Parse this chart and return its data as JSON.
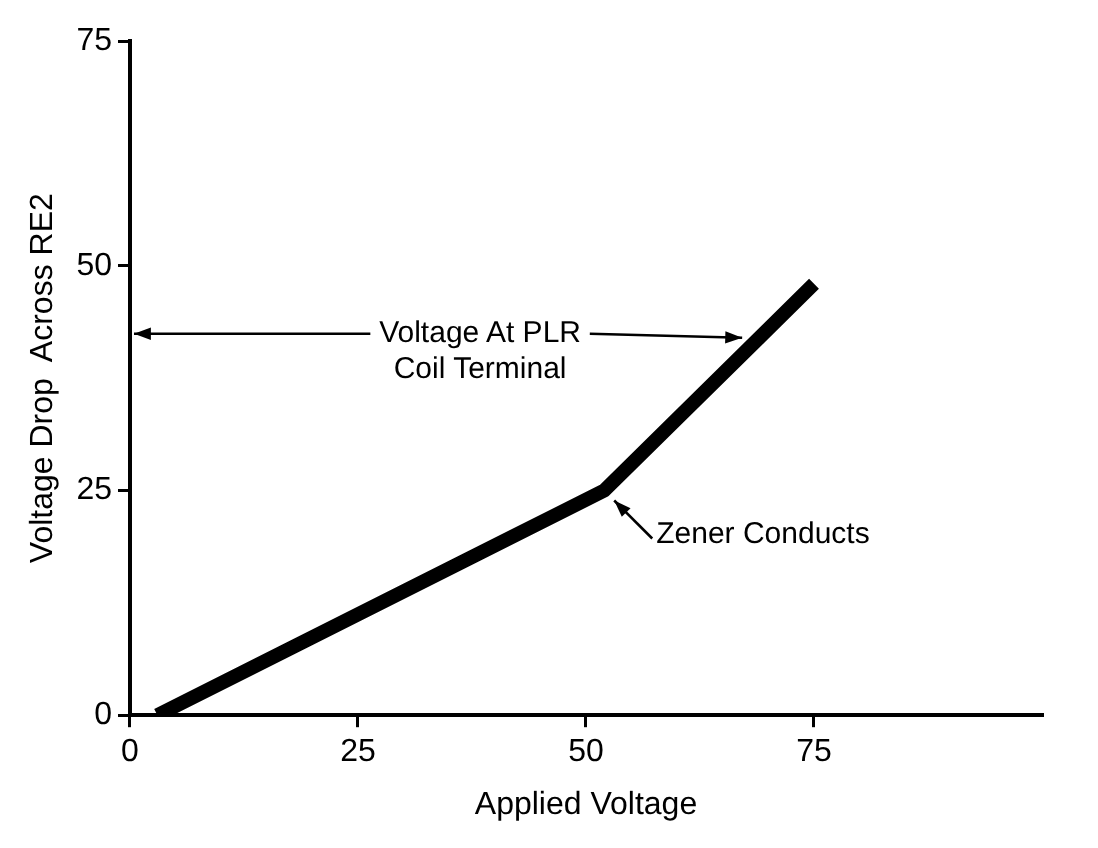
{
  "chart_data": {
    "type": "line",
    "xlabel": "Applied Voltage",
    "ylabel": "Voltage Drop  Across RE2",
    "series": [
      {
        "color": "#000000",
        "x": [
          3,
          52,
          75
        ],
        "values": [
          0,
          25,
          48
        ]
      }
    ],
    "xlim": [
      0,
      100
    ],
    "xticks": [
      0,
      25,
      50,
      75
    ],
    "ylim": [
      0,
      75
    ],
    "yticks": [
      0,
      25,
      50,
      75
    ],
    "grid": false,
    "legend": false,
    "marker": "none",
    "line_style": "solid",
    "annotations": [
      {
        "text": "Voltage At PLR\nCoil Terminal",
        "x": 68,
        "y": 42
      },
      {
        "text": "Zener Conducts",
        "x": 52,
        "y": 25
      }
    ]
  }
}
